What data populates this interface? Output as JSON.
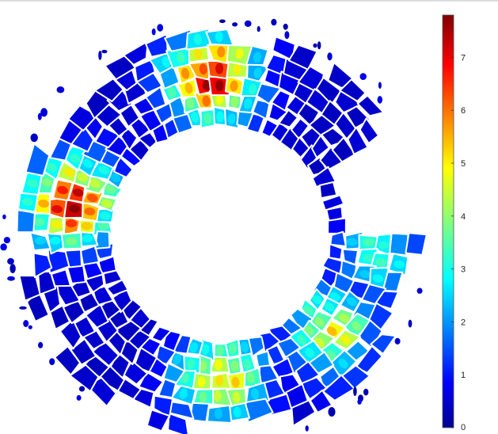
{
  "chart_data": {
    "type": "heatmap",
    "title": "",
    "xlabel": "",
    "ylabel": "",
    "colorbar": {
      "range": [
        0,
        7.8
      ],
      "ticks": [
        0,
        1,
        2,
        3,
        4,
        5,
        6,
        7
      ],
      "tick_labels": [
        "0",
        "1",
        "2",
        "3",
        "4",
        "5",
        "6",
        "7"
      ],
      "colormap": "jet"
    },
    "field": {
      "shape": "fragmented ring (C-shaped) of cells, gap on right side",
      "background": "#ffffff",
      "hotspots": [
        {
          "label": "top",
          "value": 7.2
        },
        {
          "label": "left",
          "value": 6.9
        },
        {
          "label": "bottom",
          "value": 5.4
        },
        {
          "label": "lower-right",
          "value": 4.6
        },
        {
          "label": "right",
          "value": 3.2
        }
      ]
    }
  }
}
